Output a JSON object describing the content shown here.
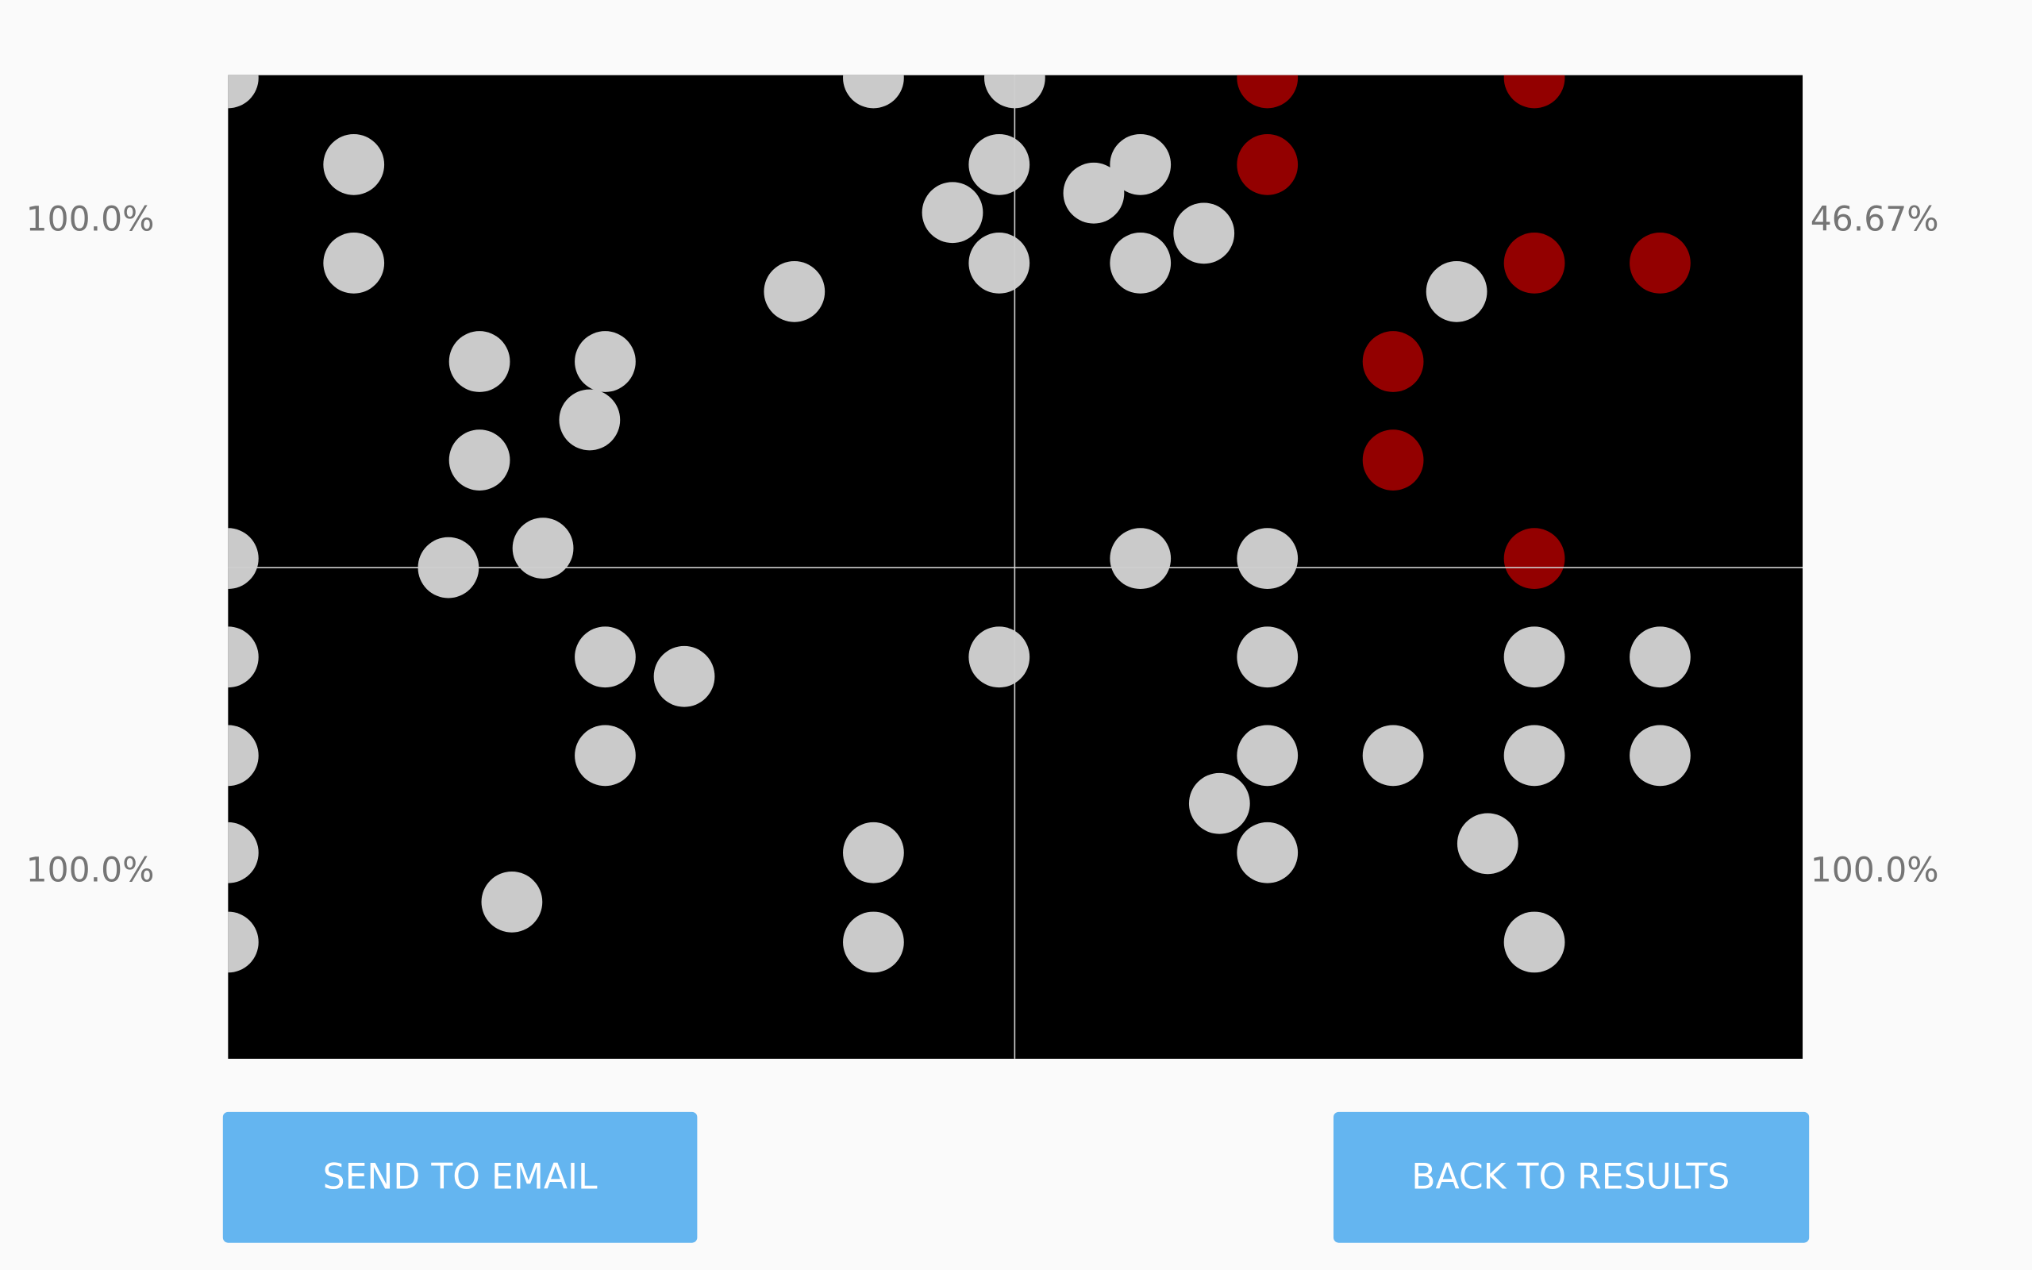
{
  "labels": {
    "top_left": "100.0%",
    "top_right": "46.67%",
    "bottom_left": "100.0%",
    "bottom_right": "100.0%"
  },
  "buttons": [
    "SEND TO EMAIL",
    "BACK TO RESULTS"
  ]
}
